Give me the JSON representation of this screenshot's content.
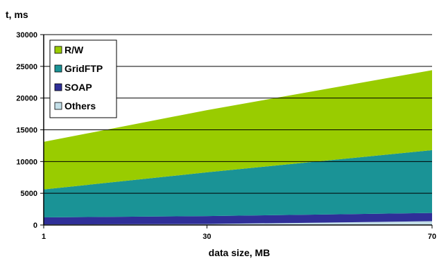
{
  "chart_data": {
    "type": "area",
    "stacked": true,
    "x": [
      "1",
      "30",
      "70"
    ],
    "series": [
      {
        "name": "Others",
        "values": [
          100,
          150,
          600
        ],
        "color": "#c3dfe8"
      },
      {
        "name": "SOAP",
        "values": [
          1100,
          1250,
          1300
        ],
        "color": "#2f2f98"
      },
      {
        "name": "GridFTP",
        "values": [
          4400,
          6900,
          9900
        ],
        "color": "#1a9396"
      },
      {
        "name": "R/W",
        "values": [
          7500,
          9800,
          12600
        ],
        "color": "#99cc00"
      }
    ],
    "legend_order": [
      "R/W",
      "GridFTP",
      "SOAP",
      "Others"
    ],
    "legend_placement": "top-left",
    "title": "",
    "xlabel": "data size, MB",
    "ylabel": "t, ms",
    "ylim": [
      0,
      30000
    ],
    "yticks": [
      0,
      5000,
      10000,
      15000,
      20000,
      25000,
      30000
    ],
    "grid": "horizontal",
    "grid_color": "#000000"
  }
}
